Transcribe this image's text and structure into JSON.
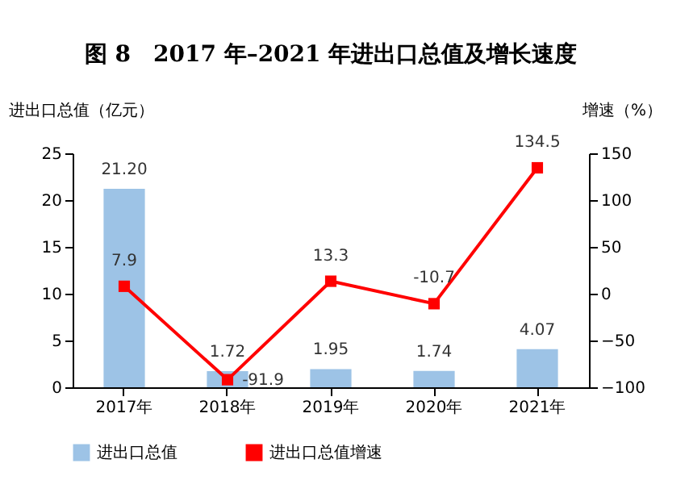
{
  "chart_data": {
    "type": "bar",
    "title": "图 8　2017 年–2021 年进出口总值及增长速度",
    "ylabel": "进出口总值（亿元）",
    "y2label": "增速（%）",
    "categories": [
      "2017年",
      "2018年",
      "2019年",
      "2020年",
      "2021年"
    ],
    "series": [
      {
        "name": "进出口总值",
        "color": "#9dc3e6",
        "values": [
          21.2,
          1.72,
          1.95,
          1.74,
          4.07
        ],
        "value_labels": [
          "21.20",
          "1.72",
          "1.95",
          "1.74",
          "4.07"
        ]
      },
      {
        "name": "进出口总值增速",
        "type": "line",
        "axis": "y2",
        "color": "#ff0000",
        "marker": "square",
        "values": [
          7.9,
          -91.9,
          13.3,
          -10.7,
          134.5
        ],
        "value_labels": [
          "7.9",
          "-91.9",
          "13.3",
          "-10.7",
          "134.5"
        ]
      }
    ],
    "ylim": [
      0,
      25
    ],
    "yticks": [
      0,
      5,
      10,
      15,
      20,
      25
    ],
    "y2lim": [
      -100,
      150
    ],
    "y2ticks": [
      -100,
      -50,
      0,
      50,
      100,
      150
    ],
    "grid": false,
    "legend": "bottom"
  }
}
